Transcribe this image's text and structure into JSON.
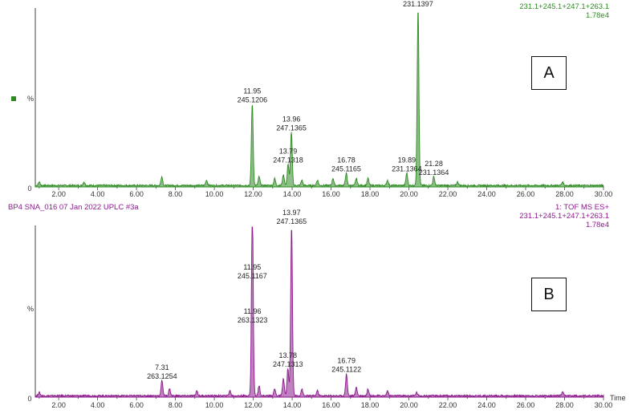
{
  "chart_data": [
    {
      "type": "line",
      "panel_label": "A",
      "color": "#2e8b22",
      "header_right": "231.1+245.1+247.1+263.1",
      "intensity": "1.78e4",
      "ylabel": "%",
      "y_zero_label": "0",
      "xlim": [
        0.8,
        30.0
      ],
      "xticks": [
        "2.00",
        "4.00",
        "6.00",
        "8.00",
        "10.00",
        "12.00",
        "14.00",
        "16.00",
        "18.00",
        "20.00",
        "22.00",
        "24.00",
        "26.00",
        "28.00",
        "30.00"
      ],
      "peaks": [
        {
          "x": 1.0,
          "y": 2
        },
        {
          "x": 3.3,
          "y": 2
        },
        {
          "x": 7.3,
          "y": 5
        },
        {
          "x": 9.6,
          "y": 3
        },
        {
          "x": 11.95,
          "y": 46
        },
        {
          "x": 12.3,
          "y": 5
        },
        {
          "x": 13.1,
          "y": 4
        },
        {
          "x": 13.55,
          "y": 6
        },
        {
          "x": 13.79,
          "y": 12
        },
        {
          "x": 13.96,
          "y": 30
        },
        {
          "x": 14.5,
          "y": 3
        },
        {
          "x": 15.3,
          "y": 3
        },
        {
          "x": 16.1,
          "y": 4
        },
        {
          "x": 16.78,
          "y": 7
        },
        {
          "x": 17.3,
          "y": 4
        },
        {
          "x": 17.9,
          "y": 4
        },
        {
          "x": 18.9,
          "y": 3
        },
        {
          "x": 19.89,
          "y": 7
        },
        {
          "x": 20.47,
          "y": 100
        },
        {
          "x": 21.28,
          "y": 5
        },
        {
          "x": 22.5,
          "y": 2
        },
        {
          "x": 27.9,
          "y": 2
        }
      ],
      "annotations": [
        {
          "x": 11.95,
          "y": 46,
          "rt": "11.95",
          "mass": "245.1206"
        },
        {
          "x": 13.96,
          "y": 30,
          "rt": "13.96",
          "mass": "247.1365"
        },
        {
          "x": 13.79,
          "y": 12,
          "rt": "13.79",
          "mass": "247.1318"
        },
        {
          "x": 16.78,
          "y": 7,
          "rt": "16.78",
          "mass": "245.1165"
        },
        {
          "x": 19.89,
          "y": 7,
          "rt": "19.89",
          "mass": "231.1364"
        },
        {
          "x": 20.47,
          "y": 100,
          "rt": "20.47",
          "mass": "231.1397"
        },
        {
          "x": 21.28,
          "y": 5,
          "rt": "21.28",
          "mass": "231.1364"
        }
      ]
    },
    {
      "type": "line",
      "panel_label": "B",
      "color": "#8b1a8b",
      "sample_header": "BP4 SNA_016 07 Jan 2022 UPLC #3a",
      "scan_header": "1: TOF MS ES+",
      "header_right": "231.1+245.1+247.1+263.1",
      "intensity": "1.78e4",
      "ylabel": "%",
      "y_zero_label": "0",
      "xlabel": "Time",
      "xlim": [
        0.8,
        30.0
      ],
      "xticks": [
        "2.00",
        "4.00",
        "6.00",
        "8.00",
        "10.00",
        "12.00",
        "14.00",
        "16.00",
        "18.00",
        "20.00",
        "22.00",
        "24.00",
        "26.00",
        "28.00",
        "30.00"
      ],
      "peaks": [
        {
          "x": 1.0,
          "y": 2
        },
        {
          "x": 7.31,
          "y": 9
        },
        {
          "x": 7.7,
          "y": 4
        },
        {
          "x": 9.1,
          "y": 3
        },
        {
          "x": 10.8,
          "y": 3
        },
        {
          "x": 11.95,
          "y": 68
        },
        {
          "x": 11.96,
          "y": 42
        },
        {
          "x": 12.3,
          "y": 6
        },
        {
          "x": 13.1,
          "y": 4
        },
        {
          "x": 13.55,
          "y": 10
        },
        {
          "x": 13.78,
          "y": 16
        },
        {
          "x": 13.97,
          "y": 100
        },
        {
          "x": 14.5,
          "y": 4
        },
        {
          "x": 15.3,
          "y": 3
        },
        {
          "x": 16.79,
          "y": 13
        },
        {
          "x": 17.3,
          "y": 5
        },
        {
          "x": 17.9,
          "y": 4
        },
        {
          "x": 18.9,
          "y": 3
        },
        {
          "x": 20.4,
          "y": 2
        },
        {
          "x": 27.9,
          "y": 2
        }
      ],
      "annotations": [
        {
          "x": 7.31,
          "y": 9,
          "rt": "7.31",
          "mass": "263.1254"
        },
        {
          "x": 11.95,
          "y": 68,
          "rt": "11.95",
          "mass": "245.1167"
        },
        {
          "x": 11.96,
          "y": 42,
          "rt": "11.96",
          "mass": "263.1323"
        },
        {
          "x": 13.78,
          "y": 16,
          "rt": "13.78",
          "mass": "247.1313"
        },
        {
          "x": 13.97,
          "y": 100,
          "rt": "13.97",
          "mass": "247.1365"
        },
        {
          "x": 16.79,
          "y": 13,
          "rt": "16.79",
          "mass": "245.1122"
        }
      ]
    }
  ]
}
